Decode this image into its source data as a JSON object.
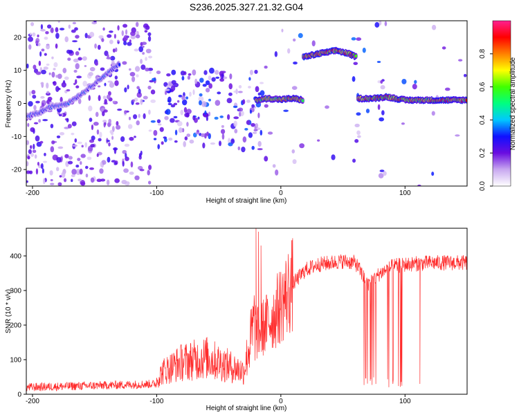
{
  "title": "S236.2025.327.21.32.G04",
  "chart_data": [
    {
      "type": "heatmap",
      "name": "spectrogram",
      "xlabel": "Height of straight line (km)",
      "ylabel": "Frequency (Hz)",
      "xlim": [
        -205,
        150
      ],
      "ylim": [
        -25,
        25
      ],
      "xticks": [
        -200,
        -100,
        0,
        100
      ],
      "yticks": [
        -20,
        -10,
        0,
        10,
        20
      ],
      "colorbar": {
        "label": "Normalized spectral amplitude",
        "range": [
          0,
          1
        ],
        "ticks": [
          "0.0",
          "0.2",
          "0.4",
          "0.6",
          "0.8"
        ],
        "tick_values": [
          0.0,
          0.2,
          0.4,
          0.6,
          0.8
        ],
        "colors": [
          "#ffffff",
          "#c8a8f0",
          "#6a0de0",
          "#1010ff",
          "#00c8ff",
          "#00ff80",
          "#40ff00",
          "#ffff00",
          "#ff8000",
          "#ff0000",
          "#ff2090"
        ]
      },
      "ridges": [
        {
          "x": [
            -205,
            -196,
            -185,
            -172,
            -160,
            -150,
            -140,
            -130
          ],
          "y": [
            -4,
            -3,
            -1,
            0,
            3,
            6,
            9,
            12
          ],
          "amp": 0.35
        },
        {
          "x": [
            -20,
            -10,
            0,
            10,
            18
          ],
          "y": [
            1,
            1.5,
            1.2,
            1.5,
            1
          ],
          "amp": 0.85
        },
        {
          "x": [
            18,
            30,
            45,
            55,
            61
          ],
          "y": [
            14,
            15,
            16,
            15,
            14
          ],
          "amp": 0.95
        },
        {
          "x": [
            62,
            75,
            85,
            100,
            120,
            150
          ],
          "y": [
            1.5,
            1.5,
            2,
            1,
            1,
            1
          ],
          "amp": 0.9
        }
      ],
      "gaps": [
        [
          59,
          64
        ],
        [
          78,
          85
        ]
      ]
    },
    {
      "type": "line",
      "name": "snr",
      "xlabel": "Height of straight line (km)",
      "ylabel": "SNR (10 * v/v)",
      "xlim": [
        -205,
        150
      ],
      "ylim": [
        0,
        480
      ],
      "xticks": [
        -200,
        -100,
        0,
        100
      ],
      "yticks": [
        0,
        100,
        200,
        300,
        400
      ],
      "color": "#ff2a2a",
      "trend": {
        "x": [
          -205,
          -150,
          -100,
          -95,
          -80,
          -60,
          -40,
          -30,
          -25,
          -20,
          -15,
          -10,
          -5,
          0,
          10,
          20,
          30,
          40,
          50,
          60,
          70,
          80,
          90,
          100,
          120,
          150
        ],
        "y": [
          20,
          25,
          30,
          50,
          70,
          80,
          60,
          50,
          110,
          170,
          190,
          210,
          230,
          260,
          320,
          360,
          375,
          380,
          385,
          380,
          320,
          350,
          370,
          375,
          380,
          380
        ]
      },
      "dropouts": [
        [
          66,
          70
        ],
        [
          72,
          77
        ],
        [
          86,
          92
        ],
        [
          94,
          98
        ]
      ],
      "spikes": [
        [
          -20,
          480
        ],
        [
          -18,
          470
        ],
        [
          -16,
          430
        ],
        [
          112,
          30
        ]
      ]
    }
  ]
}
